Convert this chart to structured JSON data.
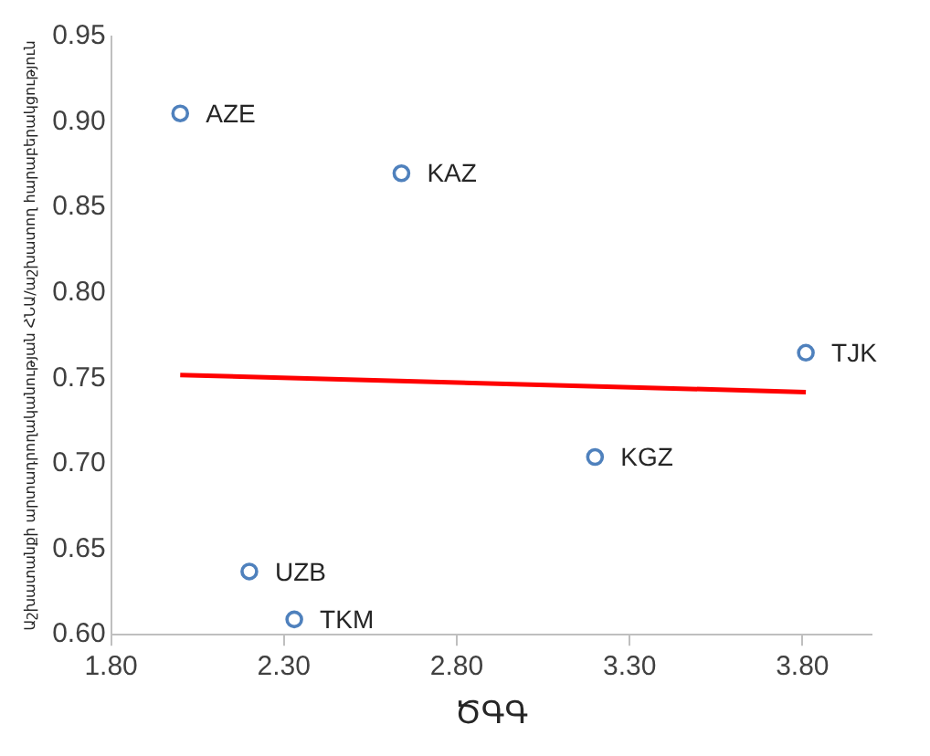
{
  "chart_data": {
    "type": "scatter",
    "xlabel": "ԾԳԳ",
    "ylabel": "Աշխատանքի արտադրողականության ՀՆԱ/աշխատող հարաբերակցություն",
    "xlim": [
      1.8,
      4.0
    ],
    "ylim": [
      0.6,
      0.95
    ],
    "xticks": [
      {
        "value": 1.8,
        "label": "1.80"
      },
      {
        "value": 2.3,
        "label": "2.30"
      },
      {
        "value": 2.8,
        "label": "2.80"
      },
      {
        "value": 3.3,
        "label": "3.30"
      },
      {
        "value": 3.8,
        "label": "3.80"
      }
    ],
    "yticks": [
      {
        "value": 0.6,
        "label": "0.60"
      },
      {
        "value": 0.65,
        "label": "0.65"
      },
      {
        "value": 0.7,
        "label": "0.70"
      },
      {
        "value": 0.75,
        "label": "0.75"
      },
      {
        "value": 0.8,
        "label": "0.80"
      },
      {
        "value": 0.85,
        "label": "0.85"
      },
      {
        "value": 0.9,
        "label": "0.90"
      },
      {
        "value": 0.95,
        "label": "0.95"
      }
    ],
    "grid": false,
    "legend": false,
    "marker": "circle",
    "series": [
      {
        "type": "scatter",
        "color": "#4f81bd",
        "x": [
          2.0,
          2.64,
          3.81,
          3.2,
          2.2,
          2.33
        ],
        "values": [
          0.905,
          0.87,
          0.765,
          0.704,
          0.637,
          0.609
        ]
      },
      {
        "type": "line",
        "color": "#ff0000",
        "x": [
          2.0,
          3.81
        ],
        "values": [
          0.752,
          0.742
        ],
        "marker": "none"
      }
    ],
    "annotations": [
      {
        "text": "AZE",
        "x": 2.0,
        "y": 0.905
      },
      {
        "text": "KAZ",
        "x": 2.64,
        "y": 0.87
      },
      {
        "text": "TJK",
        "x": 3.81,
        "y": 0.765
      },
      {
        "text": "KGZ",
        "x": 3.2,
        "y": 0.704
      },
      {
        "text": "UZB",
        "x": 2.2,
        "y": 0.637
      },
      {
        "text": "TKM",
        "x": 2.33,
        "y": 0.609
      }
    ]
  }
}
